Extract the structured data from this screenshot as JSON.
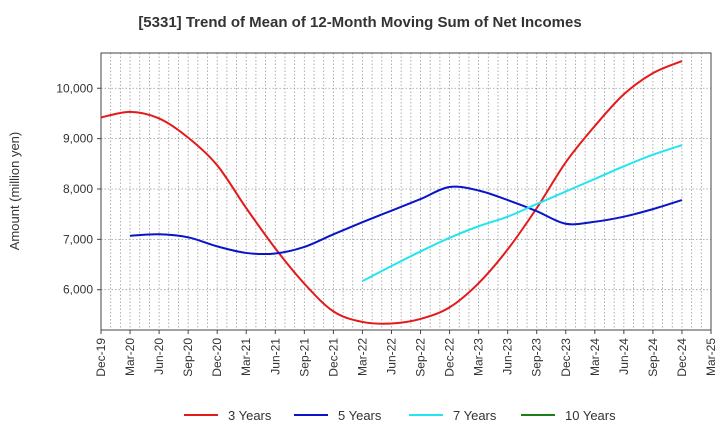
{
  "title": "[5331]  Trend of Mean of 12-Month Moving Sum of Net Incomes",
  "chart_data": {
    "type": "line",
    "title": "[5331]  Trend of Mean of 12-Month Moving Sum of Net Incomes",
    "xlabel": "",
    "ylabel": "Amount (million yen)",
    "x_tick_labels": [
      "Dec-19",
      "Mar-20",
      "Jun-20",
      "Sep-20",
      "Dec-20",
      "Mar-21",
      "Jun-21",
      "Sep-21",
      "Dec-21",
      "Mar-22",
      "Jun-22",
      "Sep-22",
      "Dec-22",
      "Mar-23",
      "Jun-23",
      "Sep-23",
      "Dec-23",
      "Mar-24",
      "Jun-24",
      "Sep-24",
      "Dec-24",
      "Mar-25"
    ],
    "y_ticks": [
      6000,
      7000,
      8000,
      9000,
      10000
    ],
    "y_tick_labels": [
      "6,000",
      "7,000",
      "8,000",
      "9,000",
      "10,000"
    ],
    "ylim": [
      5200,
      10700
    ],
    "grid": true,
    "legend_position": "bottom",
    "series": [
      {
        "name": "3 Years",
        "color": "#e31a1c",
        "points": [
          {
            "x": "Dec-19",
            "y": 9420
          },
          {
            "x": "Mar-20",
            "y": 9530
          },
          {
            "x": "Jun-20",
            "y": 9400
          },
          {
            "x": "Sep-20",
            "y": 9020
          },
          {
            "x": "Dec-20",
            "y": 8470
          },
          {
            "x": "Mar-21",
            "y": 7620
          },
          {
            "x": "Jun-21",
            "y": 6820
          },
          {
            "x": "Sep-21",
            "y": 6120
          },
          {
            "x": "Dec-21",
            "y": 5570
          },
          {
            "x": "Mar-22",
            "y": 5360
          },
          {
            "x": "Jun-22",
            "y": 5330
          },
          {
            "x": "Sep-22",
            "y": 5420
          },
          {
            "x": "Dec-22",
            "y": 5650
          },
          {
            "x": "Mar-23",
            "y": 6130
          },
          {
            "x": "Jun-23",
            "y": 6800
          },
          {
            "x": "Sep-23",
            "y": 7620
          },
          {
            "x": "Dec-23",
            "y": 8530
          },
          {
            "x": "Mar-24",
            "y": 9250
          },
          {
            "x": "Jun-24",
            "y": 9880
          },
          {
            "x": "Sep-24",
            "y": 10300
          },
          {
            "x": "Dec-24",
            "y": 10540
          }
        ]
      },
      {
        "name": "5 Years",
        "color": "#0a14c8",
        "points": [
          {
            "x": "Mar-20",
            "y": 7070
          },
          {
            "x": "Jun-20",
            "y": 7100
          },
          {
            "x": "Sep-20",
            "y": 7040
          },
          {
            "x": "Dec-20",
            "y": 6860
          },
          {
            "x": "Mar-21",
            "y": 6730
          },
          {
            "x": "Jun-21",
            "y": 6720
          },
          {
            "x": "Sep-21",
            "y": 6850
          },
          {
            "x": "Dec-21",
            "y": 7100
          },
          {
            "x": "Mar-22",
            "y": 7340
          },
          {
            "x": "Jun-22",
            "y": 7570
          },
          {
            "x": "Sep-22",
            "y": 7800
          },
          {
            "x": "Dec-22",
            "y": 8040
          },
          {
            "x": "Mar-23",
            "y": 7970
          },
          {
            "x": "Jun-23",
            "y": 7780
          },
          {
            "x": "Sep-23",
            "y": 7560
          },
          {
            "x": "Dec-23",
            "y": 7310
          },
          {
            "x": "Mar-24",
            "y": 7350
          },
          {
            "x": "Jun-24",
            "y": 7450
          },
          {
            "x": "Sep-24",
            "y": 7600
          },
          {
            "x": "Dec-24",
            "y": 7780
          }
        ]
      },
      {
        "name": "7 Years",
        "color": "#22e5f0",
        "points": [
          {
            "x": "Mar-22",
            "y": 6170
          },
          {
            "x": "Jun-22",
            "y": 6470
          },
          {
            "x": "Sep-22",
            "y": 6760
          },
          {
            "x": "Dec-22",
            "y": 7030
          },
          {
            "x": "Mar-23",
            "y": 7260
          },
          {
            "x": "Jun-23",
            "y": 7450
          },
          {
            "x": "Sep-23",
            "y": 7700
          },
          {
            "x": "Dec-23",
            "y": 7950
          },
          {
            "x": "Mar-24",
            "y": 8200
          },
          {
            "x": "Jun-24",
            "y": 8450
          },
          {
            "x": "Sep-24",
            "y": 8680
          },
          {
            "x": "Dec-24",
            "y": 8870
          }
        ]
      },
      {
        "name": "10 Years",
        "color": "#1a7f1a",
        "points": []
      }
    ]
  }
}
